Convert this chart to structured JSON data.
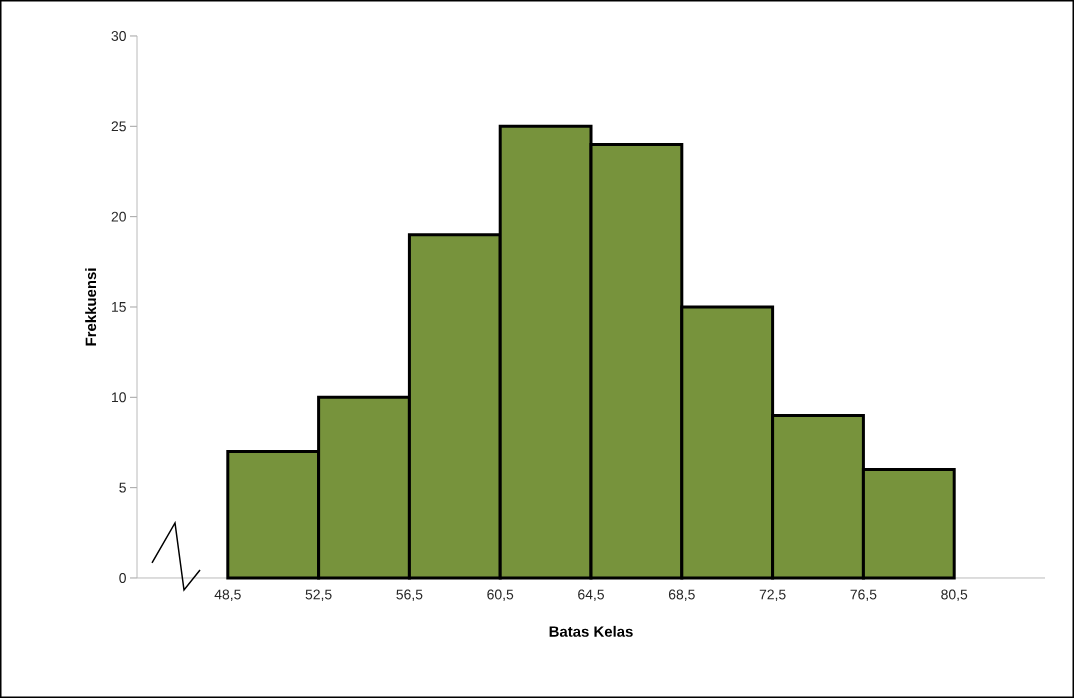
{
  "chart_data": {
    "type": "histogram",
    "xlabel": "Batas Kelas",
    "ylabel": "Frekkuensi",
    "bins": [
      48.5,
      52.5,
      56.5,
      60.5,
      64.5,
      68.5,
      72.5,
      76.5,
      80.5
    ],
    "values": [
      7,
      10,
      19,
      25,
      24,
      15,
      9,
      6
    ],
    "color": "#77933c",
    "xlim": [
      44.5,
      84.5
    ],
    "ylim": [
      0,
      30
    ],
    "xticks": [
      {
        "value": 48.5,
        "label": "48,5"
      },
      {
        "value": 52.5,
        "label": "52,5"
      },
      {
        "value": 56.5,
        "label": "56,5"
      },
      {
        "value": 60.5,
        "label": "60,5"
      },
      {
        "value": 64.5,
        "label": "64,5"
      },
      {
        "value": 68.5,
        "label": "68,5"
      },
      {
        "value": 72.5,
        "label": "72,5"
      },
      {
        "value": 76.5,
        "label": "76,5"
      },
      {
        "value": 80.5,
        "label": "80,5"
      }
    ],
    "yticks": [
      0,
      5,
      10,
      15,
      20,
      25,
      30
    ],
    "grid": false
  }
}
